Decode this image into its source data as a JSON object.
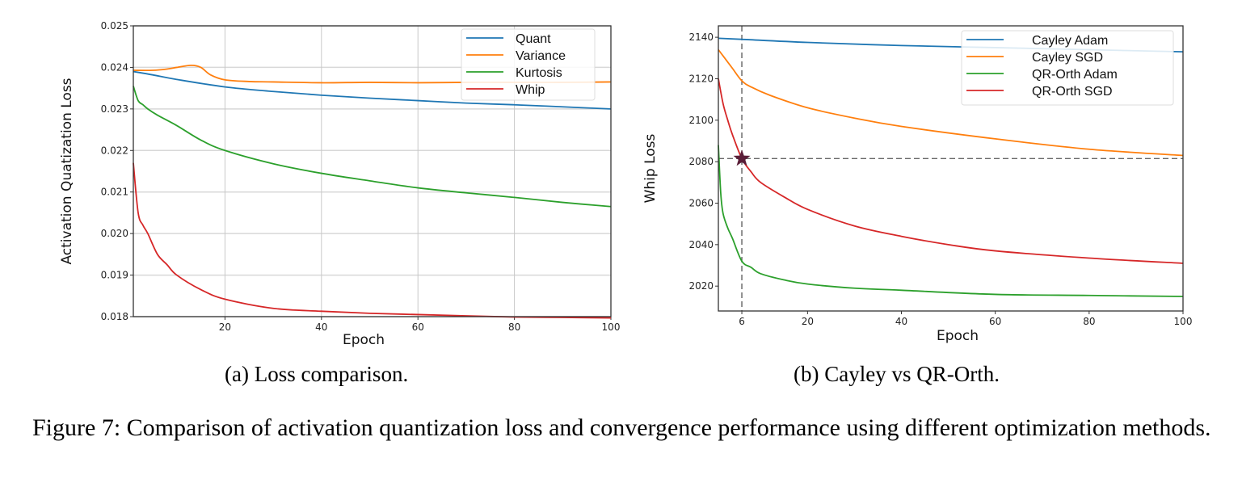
{
  "chart_data": [
    {
      "type": "line",
      "xlabel": "Epoch",
      "ylabel": "Activation Quatization Loss",
      "xlim": [
        1,
        100
      ],
      "ylim": [
        0.018,
        0.025
      ],
      "xticks": [
        20,
        40,
        60,
        80,
        100
      ],
      "yticks": [
        "0.018",
        "0.019",
        "0.020",
        "0.021",
        "0.022",
        "0.023",
        "0.024",
        "0.025"
      ],
      "grid": true,
      "legend_position": "top-right",
      "series": [
        {
          "name": "Quant",
          "color": "#1f77b4",
          "x": [
            1,
            5,
            10,
            20,
            30,
            40,
            50,
            60,
            70,
            80,
            90,
            100
          ],
          "y": [
            0.0239,
            0.02382,
            0.02371,
            0.02353,
            0.02342,
            0.02333,
            0.02326,
            0.0232,
            0.02314,
            0.0231,
            0.02305,
            0.023
          ]
        },
        {
          "name": "Variance",
          "color": "#ff7f0e",
          "x": [
            1,
            5,
            8,
            10,
            13,
            15,
            17,
            20,
            25,
            30,
            40,
            50,
            60,
            70,
            80,
            90,
            100
          ],
          "y": [
            0.02393,
            0.02393,
            0.02396,
            0.024,
            0.02405,
            0.024,
            0.02382,
            0.0237,
            0.02366,
            0.02365,
            0.02363,
            0.02364,
            0.02363,
            0.02364,
            0.02364,
            0.02364,
            0.02365
          ]
        },
        {
          "name": "Kurtosis",
          "color": "#2ca02c",
          "x": [
            1,
            2,
            3,
            4,
            6,
            10,
            15,
            20,
            30,
            40,
            50,
            60,
            70,
            80,
            90,
            100
          ],
          "y": [
            0.02355,
            0.0232,
            0.0231,
            0.023,
            0.02285,
            0.0226,
            0.02225,
            0.022,
            0.02168,
            0.02145,
            0.02127,
            0.0211,
            0.02098,
            0.02087,
            0.02075,
            0.02065
          ]
        },
        {
          "name": "Whip",
          "color": "#d62728",
          "x": [
            1,
            2,
            3,
            4,
            6,
            8,
            10,
            15,
            20,
            30,
            40,
            50,
            60,
            70,
            80,
            90,
            100
          ],
          "y": [
            0.0217,
            0.0205,
            0.0202,
            0.02,
            0.0195,
            0.01925,
            0.019,
            0.01865,
            0.01842,
            0.0182,
            0.01813,
            0.01808,
            0.01805,
            0.01802,
            0.01799,
            0.01798,
            0.01797
          ]
        }
      ]
    },
    {
      "type": "line",
      "xlabel": "Epoch",
      "ylabel": "Whip Loss",
      "xlim": [
        1,
        100
      ],
      "ylim": [
        2008,
        2145.5
      ],
      "xticks": [
        6,
        20,
        40,
        60,
        80,
        100
      ],
      "yticks": [
        "2020",
        "2040",
        "2060",
        "2080",
        "2100",
        "2120",
        "2140"
      ],
      "grid": false,
      "legend_position": "top-right",
      "reference_lines": {
        "x": 6,
        "y": 2081.5,
        "style": "dashed"
      },
      "marker": {
        "shape": "star",
        "x": 6,
        "y": 2081.5,
        "color": "#5a1e38"
      },
      "series": [
        {
          "name": "Cayley Adam",
          "color": "#1f77b4",
          "x": [
            1,
            6,
            20,
            40,
            60,
            80,
            100
          ],
          "y": [
            2139.5,
            2139,
            2137.5,
            2136,
            2135,
            2134,
            2133
          ]
        },
        {
          "name": "Cayley SGD",
          "color": "#ff7f0e",
          "x": [
            1,
            2,
            3,
            4,
            6,
            8,
            12,
            20,
            30,
            40,
            60,
            80,
            100
          ],
          "y": [
            2134,
            2131,
            2128,
            2125,
            2119,
            2116,
            2112,
            2106,
            2101,
            2097,
            2091,
            2086,
            2083
          ]
        },
        {
          "name": "QR-Orth Adam",
          "color": "#2ca02c",
          "x": [
            1,
            1.5,
            2,
            3,
            4,
            6,
            8,
            10,
            15,
            20,
            30,
            40,
            60,
            80,
            100
          ],
          "y": [
            2088,
            2065,
            2055,
            2048,
            2043,
            2032,
            2029,
            2026,
            2023,
            2021,
            2019,
            2018,
            2016,
            2015.5,
            2015
          ]
        },
        {
          "name": "QR-Orth SGD",
          "color": "#d62728",
          "x": [
            1,
            2,
            3,
            4,
            6,
            8,
            10,
            15,
            20,
            30,
            40,
            50,
            60,
            80,
            100
          ],
          "y": [
            2120,
            2108,
            2100,
            2093,
            2081.5,
            2075,
            2070,
            2063,
            2057,
            2049,
            2044,
            2040,
            2037,
            2033.5,
            2031
          ]
        }
      ]
    }
  ],
  "subcaptions": {
    "a": "(a) Loss comparison.",
    "b": "(b) Cayley vs QR-Orth."
  },
  "caption": "Figure 7: Comparison of activation quantization loss and convergence performance using different optimization methods."
}
